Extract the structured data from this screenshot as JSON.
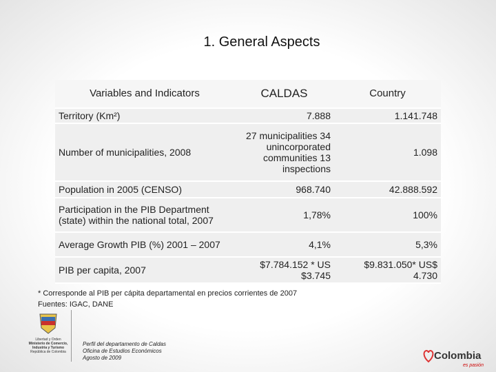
{
  "title": "1. General Aspects",
  "table": {
    "header": [
      "Variables and Indicators",
      "CALDAS",
      "Country"
    ],
    "rows": [
      [
        "Territory (Km²)",
        "7.888",
        "1.141.748"
      ],
      [
        "Number of municipalities, 2008",
        "27 municipalities 34 unincorporated communities 13 inspections",
        "1.098"
      ],
      [
        "Population in 2005 (CENSO)",
        "968.740",
        "42.888.592"
      ],
      [
        "Participation in the PIB Department (state) within the national total, 2007",
        "1,78%",
        "100%"
      ],
      [
        "Average Growth PIB (%) 2001 – 2007",
        "4,1%",
        "5,3%"
      ],
      [
        "PIB per capita, 2007",
        "$7.784.152 * US $3.745",
        "$9.831.050* US$ 4.730"
      ]
    ]
  },
  "footnote": "* Corresponde al PIB per cápita departamental en precios corrientes de 2007",
  "sources": "Fuentes: IGAC, DANE",
  "ministry": [
    "Libertad y Orden",
    "Ministerio de Comercio, Industria y Turismo",
    "República de Colombia"
  ],
  "credit": [
    "Perfil del departamento de Caldas",
    "Oficina de Estudios Económicos",
    "Agosto de 2009"
  ],
  "brand": {
    "name": "Colombia",
    "tagline": "es pasión"
  }
}
